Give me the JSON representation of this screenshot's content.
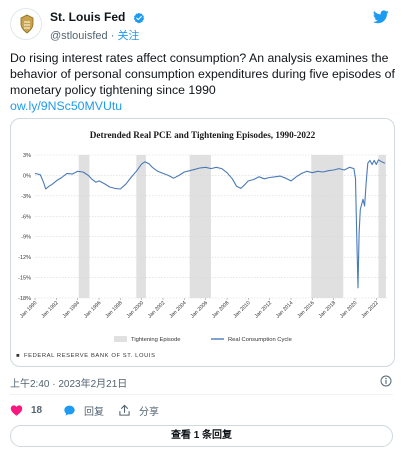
{
  "header": {
    "display_name": "St. Louis Fed",
    "handle": "@stlouisfed",
    "separator": "·",
    "follow_label": "关注",
    "avatar_icon": "st-louis-fed-logo-icon",
    "verified_icon": "verified-badge-icon",
    "platform_icon": "twitter-bird-icon"
  },
  "tweet": {
    "text": "Do rising interest rates affect consumption? An analysis examines the behavior of personal consumption expenditures during five episodes of monetary policy tightening since 1990",
    "link": "ow.ly/9NSc50MVUtu"
  },
  "card": {
    "footer": "FEDERAL RESERVE BANK OF ST. LOUIS"
  },
  "chart_data": {
    "type": "line",
    "title": "Detrended Real PCE and Tightening Episodes, 1990-2022",
    "xlabel": "",
    "ylabel": "",
    "ylim": [
      -18,
      3
    ],
    "xlim": [
      1990,
      2023
    ],
    "grid": true,
    "legend_position": "bottom",
    "y_ticks": [
      "3%",
      "0%",
      "-3%",
      "-6%",
      "-9%",
      "-12%",
      "-15%",
      "-18%"
    ],
    "y_tick_values": [
      3,
      0,
      -3,
      -6,
      -9,
      -12,
      -15,
      -18
    ],
    "x_ticks": [
      "Jan 1990",
      "Jan 1992",
      "Jan 1994",
      "Jan 1996",
      "Jan 1998",
      "Jan 2000",
      "Jan 2002",
      "Jan 2004",
      "Jan 2006",
      "Jan 2008",
      "Jan 2010",
      "Jan 2012",
      "Jan 2014",
      "Jan 2016",
      "Jan 2018",
      "Jan 2020",
      "Jan 2022"
    ],
    "x_tick_values": [
      1990,
      1992,
      1994,
      1996,
      1998,
      2000,
      2002,
      2004,
      2006,
      2008,
      2010,
      2012,
      2014,
      2016,
      2018,
      2020,
      2022
    ],
    "tightening_episodes": [
      [
        1994.1,
        1995.1
      ],
      [
        1999.5,
        2000.4
      ],
      [
        2004.5,
        2006.5
      ],
      [
        2015.9,
        2018.9
      ],
      [
        2022.2,
        2022.9
      ]
    ],
    "series": [
      {
        "name": "Real Consumption Cycle",
        "color": "#4a7ab8",
        "points": [
          [
            1990.0,
            0.3
          ],
          [
            1990.5,
            0.1
          ],
          [
            1990.8,
            -1.0
          ],
          [
            1991.0,
            -2.0
          ],
          [
            1991.3,
            -1.6
          ],
          [
            1991.6,
            -1.3
          ],
          [
            1992.0,
            -0.8
          ],
          [
            1992.5,
            -0.3
          ],
          [
            1993.0,
            0.3
          ],
          [
            1993.5,
            0.2
          ],
          [
            1994.0,
            0.6
          ],
          [
            1994.5,
            0.5
          ],
          [
            1995.0,
            0.0
          ],
          [
            1995.3,
            -0.5
          ],
          [
            1995.7,
            -1.0
          ],
          [
            1996.0,
            -0.8
          ],
          [
            1996.5,
            -1.2
          ],
          [
            1997.0,
            -1.7
          ],
          [
            1997.5,
            -1.9
          ],
          [
            1998.0,
            -2.0
          ],
          [
            1998.5,
            -1.3
          ],
          [
            1999.0,
            -0.3
          ],
          [
            1999.5,
            0.6
          ],
          [
            2000.0,
            1.7
          ],
          [
            2000.3,
            2.0
          ],
          [
            2000.7,
            1.7
          ],
          [
            2001.0,
            1.2
          ],
          [
            2001.5,
            0.6
          ],
          [
            2002.0,
            0.3
          ],
          [
            2002.5,
            0.0
          ],
          [
            2003.0,
            -0.4
          ],
          [
            2003.5,
            0.0
          ],
          [
            2004.0,
            0.5
          ],
          [
            2004.5,
            0.7
          ],
          [
            2005.0,
            0.9
          ],
          [
            2005.5,
            1.1
          ],
          [
            2006.0,
            1.2
          ],
          [
            2006.5,
            1.0
          ],
          [
            2007.0,
            1.2
          ],
          [
            2007.5,
            1.0
          ],
          [
            2008.0,
            0.4
          ],
          [
            2008.5,
            -0.5
          ],
          [
            2008.9,
            -1.6
          ],
          [
            2009.3,
            -1.9
          ],
          [
            2009.7,
            -1.3
          ],
          [
            2010.0,
            -0.8
          ],
          [
            2010.5,
            -0.6
          ],
          [
            2011.0,
            -0.2
          ],
          [
            2011.5,
            -0.5
          ],
          [
            2012.0,
            -0.3
          ],
          [
            2012.5,
            -0.2
          ],
          [
            2013.0,
            -0.1
          ],
          [
            2013.5,
            -0.4
          ],
          [
            2014.0,
            -0.8
          ],
          [
            2014.5,
            -0.2
          ],
          [
            2015.0,
            0.3
          ],
          [
            2015.5,
            0.6
          ],
          [
            2016.0,
            0.4
          ],
          [
            2016.5,
            0.6
          ],
          [
            2017.0,
            0.5
          ],
          [
            2017.5,
            0.7
          ],
          [
            2018.0,
            0.8
          ],
          [
            2018.5,
            1.0
          ],
          [
            2019.0,
            0.8
          ],
          [
            2019.5,
            1.2
          ],
          [
            2019.9,
            1.0
          ],
          [
            2020.05,
            -0.5
          ],
          [
            2020.15,
            -8.0
          ],
          [
            2020.28,
            -16.5
          ],
          [
            2020.38,
            -8.5
          ],
          [
            2020.5,
            -5.0
          ],
          [
            2020.75,
            -3.5
          ],
          [
            2020.9,
            -4.5
          ],
          [
            2021.05,
            -1.0
          ],
          [
            2021.2,
            1.8
          ],
          [
            2021.4,
            2.2
          ],
          [
            2021.6,
            1.6
          ],
          [
            2021.8,
            2.2
          ],
          [
            2022.0,
            1.6
          ],
          [
            2022.2,
            2.3
          ],
          [
            2022.5,
            2.0
          ],
          [
            2022.8,
            1.8
          ]
        ]
      }
    ],
    "legend": [
      {
        "label": "Tightening Episode",
        "color": "#e0e0e0",
        "kind": "area"
      },
      {
        "label": "Real Consumption Cycle",
        "color": "#4a7ab8",
        "kind": "line"
      }
    ]
  },
  "footer": {
    "timestamp": "上午2:40 · 2023年2月21日",
    "info_icon": "info-icon",
    "likes_count": "18",
    "like_icon": "heart-icon",
    "reply_label": "回复",
    "reply_icon": "reply-bubble-icon",
    "share_label": "分享",
    "share_icon": "share-icon",
    "read_replies_label": "查看 1 条回复"
  }
}
